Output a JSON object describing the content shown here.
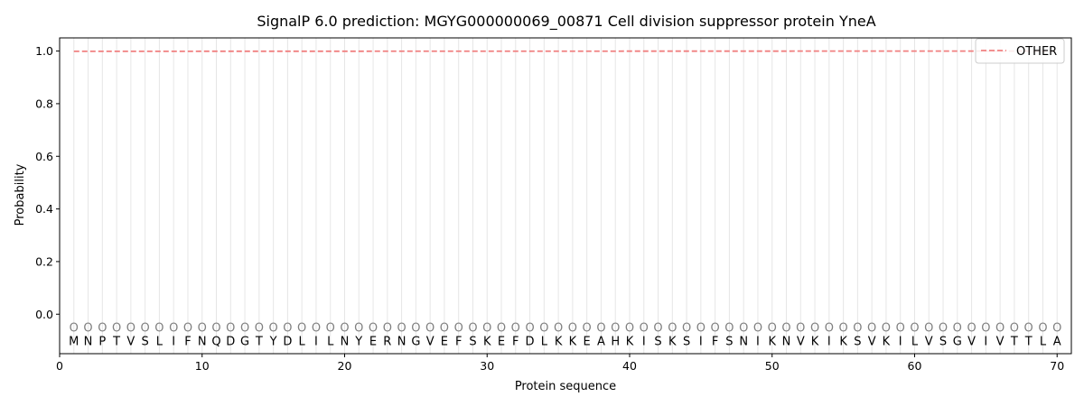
{
  "chart_data": {
    "type": "line",
    "title": "SignalP 6.0 prediction: MGYG000000069_00871 Cell division suppressor protein YneA",
    "xlabel": "Protein sequence",
    "ylabel": "Probability",
    "xlim": [
      0,
      71
    ],
    "ylim": [
      -0.15,
      1.05
    ],
    "xticks": [
      0,
      10,
      20,
      30,
      40,
      50,
      60,
      70
    ],
    "yticks": [
      0.0,
      0.2,
      0.4,
      0.6,
      0.8,
      1.0
    ],
    "xtick_labels": [
      "0",
      "10",
      "20",
      "30",
      "40",
      "50",
      "60",
      "70"
    ],
    "ytick_labels": [
      "0.0",
      "0.2",
      "0.4",
      "0.6",
      "0.8",
      "1.0"
    ],
    "legend_position": "top-right",
    "grid": "vertical lines at each residue",
    "sequence": [
      "M",
      "N",
      "P",
      "T",
      "V",
      "S",
      "L",
      "I",
      "F",
      "N",
      "Q",
      "D",
      "G",
      "T",
      "Y",
      "D",
      "L",
      "I",
      "L",
      "N",
      "Y",
      "E",
      "R",
      "N",
      "G",
      "V",
      "E",
      "F",
      "S",
      "K",
      "E",
      "F",
      "D",
      "L",
      "K",
      "K",
      "E",
      "A",
      "H",
      "K",
      "I",
      "S",
      "K",
      "S",
      "I",
      "F",
      "S",
      "N",
      "I",
      "K",
      "N",
      "V",
      "K",
      "I",
      "K",
      "S",
      "V",
      "K",
      "I",
      "L",
      "V",
      "S",
      "G",
      "V",
      "I",
      "V",
      "T",
      "T",
      "L",
      "A"
    ],
    "predicted_label": "O",
    "series": [
      {
        "name": "OTHER",
        "color": "#f08080",
        "style": "dashed",
        "x_start": 1,
        "x_end": 70,
        "y_start": 0.999,
        "y_end": 1.0
      }
    ]
  }
}
